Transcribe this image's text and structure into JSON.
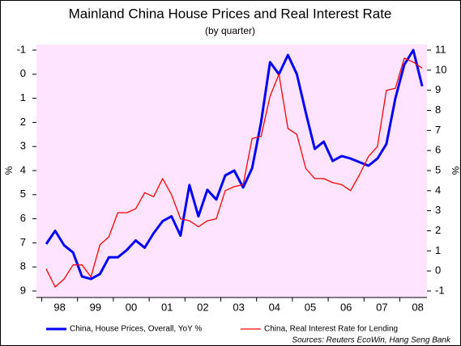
{
  "chart_data": {
    "type": "line",
    "title": "Mainland China House Prices and Real Interest Rate",
    "subtitle": "(by quarter)",
    "ylabel": "%",
    "y2label": "%",
    "source": "Sources: Reuters EcoWin, Hang Seng Bank",
    "categories": [
      null,
      "98",
      null,
      null,
      null,
      "99",
      null,
      null,
      null,
      "00",
      null,
      null,
      null,
      "01",
      null,
      null,
      null,
      "02",
      null,
      null,
      null,
      "03",
      null,
      null,
      null,
      "04",
      null,
      null,
      null,
      "05",
      null,
      null,
      null,
      "06",
      null,
      null,
      null,
      "07",
      null,
      null,
      null,
      "08",
      null
    ],
    "ylim": [
      9,
      -1
    ],
    "yticks": [
      -1,
      0,
      1,
      2,
      3,
      4,
      5,
      6,
      7,
      8,
      9
    ],
    "y2lim": [
      -1,
      11
    ],
    "y2ticks": [
      -1,
      0,
      1,
      2,
      3,
      4,
      5,
      6,
      7,
      8,
      9,
      10,
      11
    ],
    "series": [
      {
        "name": "China, House Prices, Overall, YoY %",
        "color": "#0000ff",
        "values": [
          7.05,
          6.5,
          7.1,
          7.4,
          8.4,
          8.5,
          8.3,
          7.6,
          7.6,
          7.3,
          6.9,
          7.2,
          6.6,
          6.1,
          5.9,
          6.7,
          4.6,
          5.9,
          4.8,
          5.2,
          4.2,
          4.0,
          4.7,
          3.9,
          2.0,
          -0.5,
          0.0,
          -0.8,
          0.0,
          1.6,
          3.1,
          2.8,
          3.6,
          3.4,
          3.5,
          3.65,
          3.8,
          3.5,
          2.9,
          1.0,
          -0.4,
          -1.0,
          0.5
        ]
      },
      {
        "name": "China, Real Interest Rate for Lending",
        "color": "#ff0000",
        "axis": "y2",
        "values": [
          0.1,
          -0.8,
          -0.4,
          0.3,
          0.3,
          -0.3,
          1.3,
          1.7,
          2.9,
          2.9,
          3.1,
          3.9,
          3.7,
          4.6,
          3.8,
          2.6,
          2.5,
          2.2,
          2.5,
          2.6,
          4.0,
          4.2,
          4.3,
          6.6,
          6.7,
          8.7,
          9.8,
          7.1,
          6.8,
          5.1,
          4.6,
          4.6,
          4.4,
          4.3,
          4.0,
          4.8,
          5.7,
          6.2,
          9.0,
          9.1,
          10.6,
          10.4,
          10.1
        ]
      }
    ]
  }
}
